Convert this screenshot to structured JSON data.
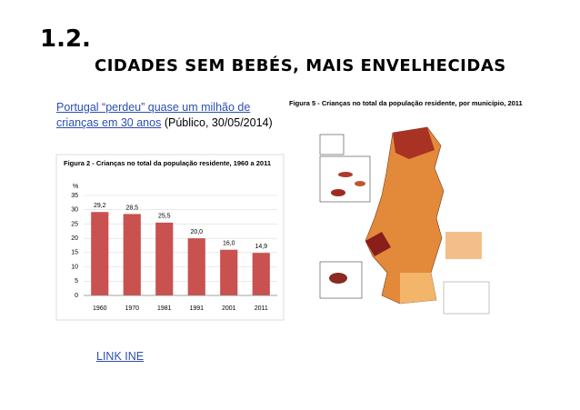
{
  "header": {
    "number": "1.2.",
    "title": "CIDADES SEM BEBÉS, MAIS ENVELHECIDAS"
  },
  "article": {
    "link": "Portugal “perdeu” quase um milhão de crianças em 30 anos",
    "source": "(Público, 30/05/2014)"
  },
  "map_figure": {
    "title": "Figura 5 - Crianças no total da população residente, por município, 2011"
  },
  "footer_link": "LINK INE",
  "chart_data": {
    "type": "bar",
    "title": "Figura 2 - Crianças no total da população residente, 1960 a 2011",
    "y_label": "%",
    "categories": [
      "1960",
      "1970",
      "1981",
      "1991",
      "2001",
      "2011"
    ],
    "values": [
      29.2,
      28.5,
      25.5,
      20.0,
      16.0,
      14.9
    ],
    "value_labels": [
      "29,2",
      "28,5",
      "25,5",
      "20,0",
      "16,0",
      "14,9"
    ],
    "color": "#c9514f",
    "ylim": [
      0,
      35
    ],
    "yticks": [
      0,
      5,
      10,
      15,
      20,
      25,
      30,
      35
    ],
    "grid": true
  }
}
